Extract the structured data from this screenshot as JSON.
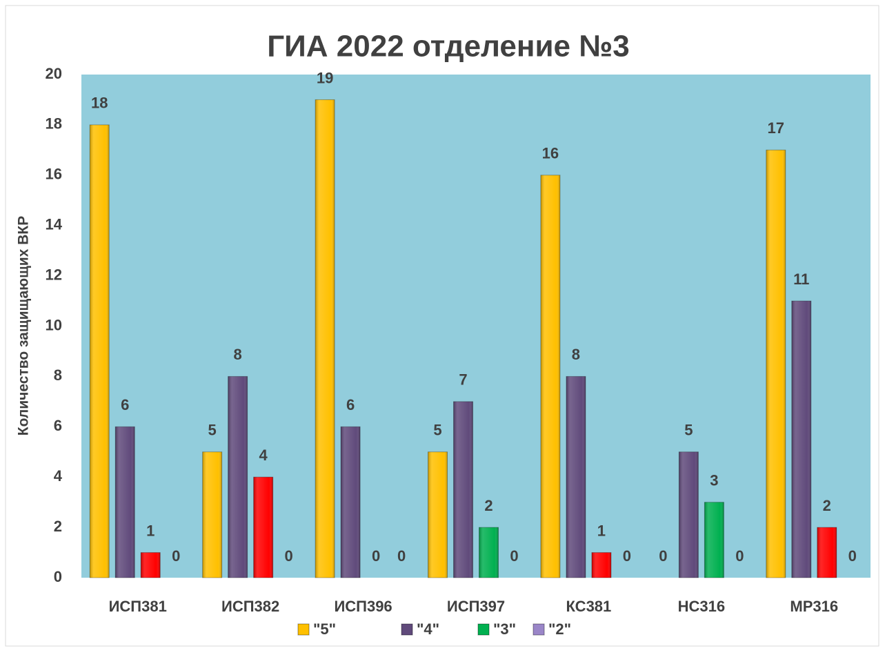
{
  "chart_data": {
    "type": "bar",
    "title": "ГИА 2022  отделение №3",
    "y_label": "Количество защищающих ВКР",
    "categories": [
      "ИСП381",
      "ИСП382",
      "ИСП396",
      "ИСП397",
      "КС381",
      "НС316",
      "МР316"
    ],
    "series": [
      {
        "name": "\"5\"",
        "color": "#ffc000",
        "values": [
          18,
          5,
          19,
          5,
          16,
          0,
          17
        ]
      },
      {
        "name": "\"4\"",
        "color": "#604a7b",
        "values": [
          6,
          8,
          6,
          7,
          8,
          5,
          11
        ]
      },
      {
        "name": "\"3\"",
        "color": "#00b050",
        "colors": [
          "#ff0000",
          "#ff0000",
          "#ff0000",
          "#00b050",
          "#ff0000",
          "#00b050",
          "#ff0000"
        ],
        "values": [
          1,
          4,
          0,
          2,
          1,
          3,
          2
        ]
      },
      {
        "name": "\"2\"",
        "color": "#9a86c8",
        "values": [
          0,
          0,
          0,
          0,
          0,
          0,
          0
        ]
      }
    ],
    "ylim": [
      0,
      20
    ],
    "yticks": [
      0,
      2,
      4,
      6,
      8,
      10,
      12,
      14,
      16,
      18,
      20
    ],
    "legend": "bottom",
    "plot_background": "#92cddc"
  }
}
